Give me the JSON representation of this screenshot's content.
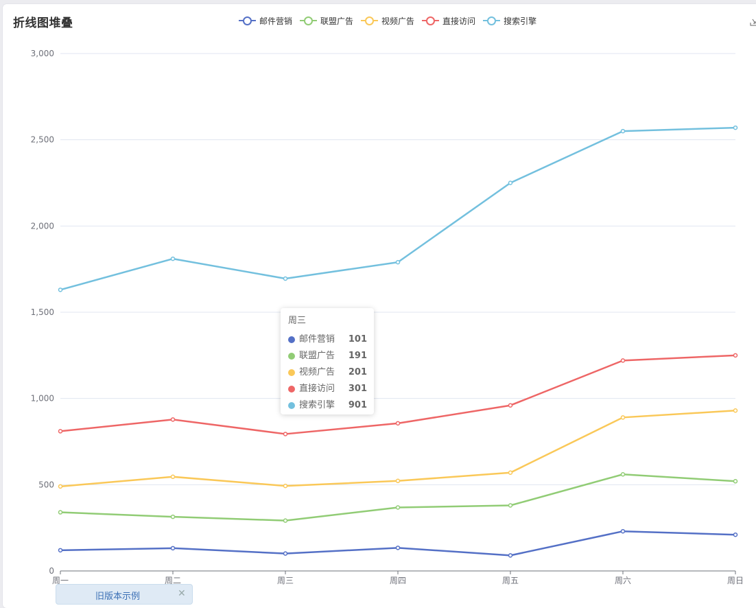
{
  "page": {
    "title": "折线图堆叠",
    "old_version_label": "旧版本示例",
    "close_glyph": "✕",
    "toolbox_icon": "save-as-image-icon"
  },
  "chart_data": {
    "type": "line",
    "stacked": true,
    "title": "折线图堆叠",
    "xlabel": "",
    "ylabel": "",
    "categories": [
      "周一",
      "周二",
      "周三",
      "周四",
      "周五",
      "周六",
      "周日"
    ],
    "ylim": [
      0,
      3000
    ],
    "yticks": [
      0,
      500,
      1000,
      1500,
      2000,
      2500,
      3000
    ],
    "ytick_labels": [
      "0",
      "500",
      "1,000",
      "1,500",
      "2,000",
      "2,500",
      "3,000"
    ],
    "grid": true,
    "legend_position": "top-center",
    "series": [
      {
        "name": "邮件营销",
        "color": "#5470c6",
        "values": [
          120,
          132,
          101,
          134,
          90,
          230,
          210
        ]
      },
      {
        "name": "联盟广告",
        "color": "#91cc75",
        "values": [
          220,
          182,
          191,
          234,
          290,
          330,
          310
        ]
      },
      {
        "name": "视频广告",
        "color": "#fac858",
        "values": [
          150,
          232,
          201,
          154,
          190,
          330,
          410
        ]
      },
      {
        "name": "直接访问",
        "color": "#ee6666",
        "values": [
          320,
          332,
          301,
          334,
          390,
          330,
          320
        ]
      },
      {
        "name": "搜索引擎",
        "color": "#73c0de",
        "values": [
          820,
          932,
          901,
          934,
          1290,
          1330,
          1320
        ]
      }
    ],
    "tooltip": {
      "title": "周三",
      "rows": [
        {
          "name": "邮件营销",
          "color": "#5470c6",
          "value": "101"
        },
        {
          "name": "联盟广告",
          "color": "#91cc75",
          "value": "191"
        },
        {
          "name": "视频广告",
          "color": "#fac858",
          "value": "201"
        },
        {
          "name": "直接访问",
          "color": "#ee6666",
          "value": "301"
        },
        {
          "name": "搜索引擎",
          "color": "#73c0de",
          "value": "901"
        }
      ]
    }
  }
}
